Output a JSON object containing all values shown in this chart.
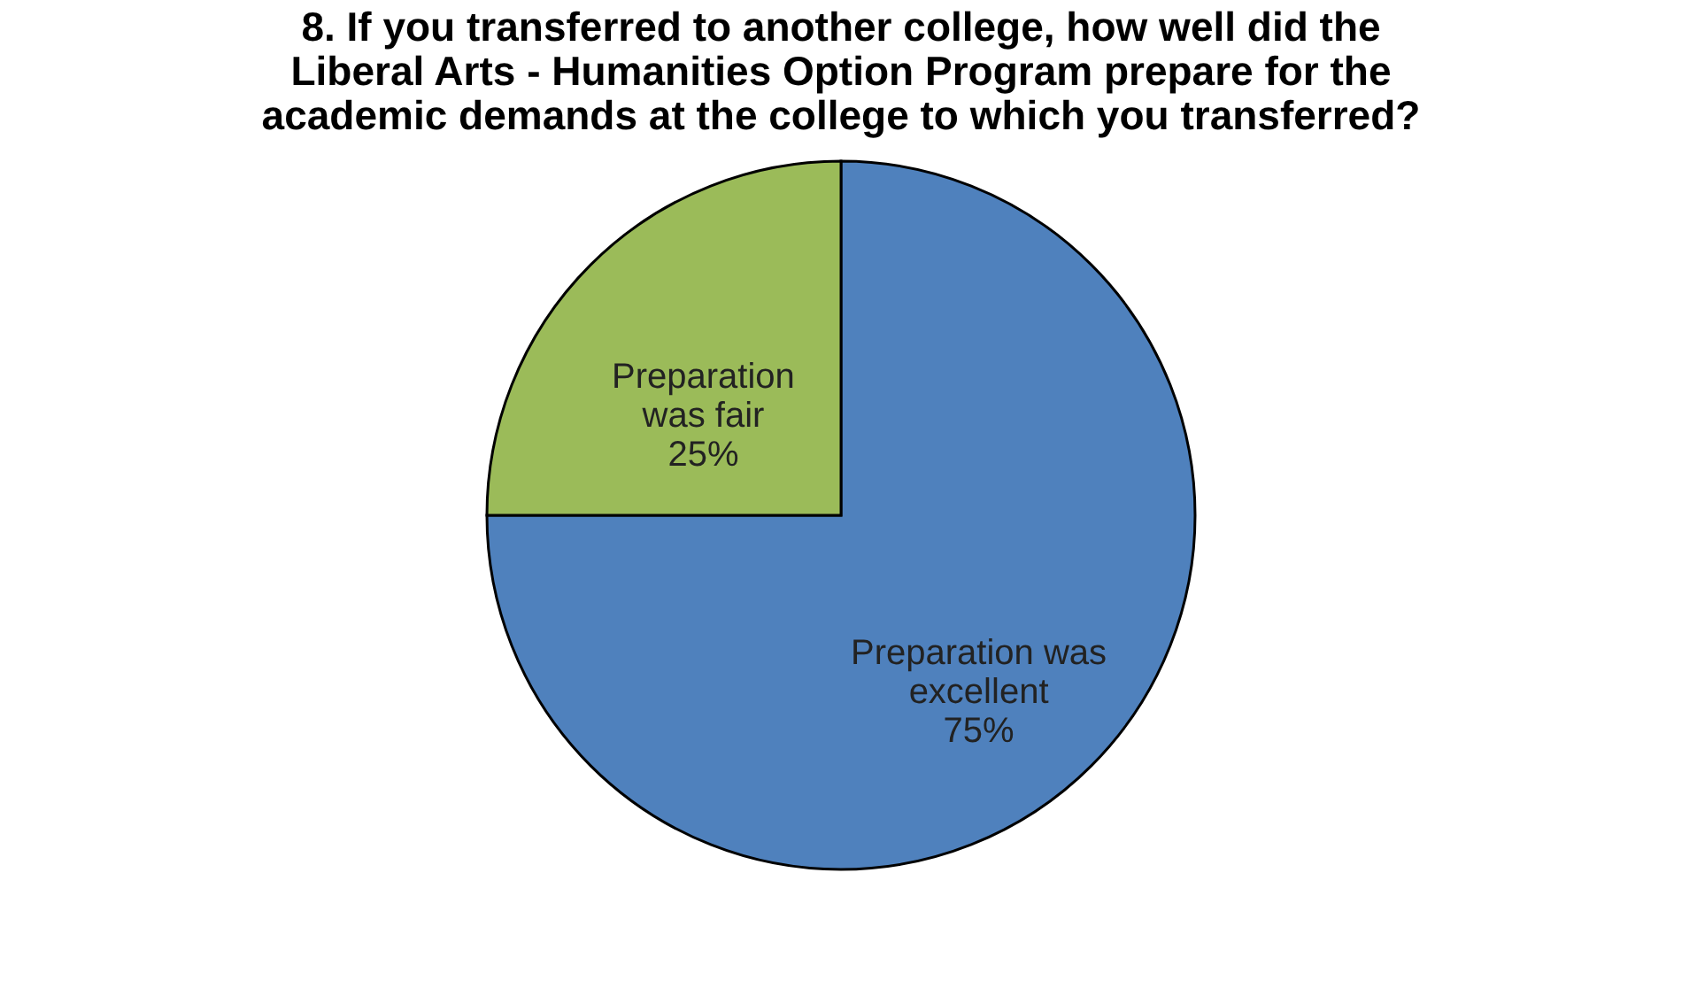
{
  "chart_data": {
    "type": "pie",
    "title": "8.  If you transferred to another college, how well did the Liberal Arts -  Humanities Option Program prepare for the academic demands at the college to which you transferred?",
    "categories": [
      "Preparation was excellent",
      "Preparation was fair"
    ],
    "values": [
      75,
      25
    ],
    "colors": [
      "#4f81bd",
      "#9bbb59"
    ],
    "value_labels": [
      "75%",
      "25%"
    ],
    "legend": false
  }
}
